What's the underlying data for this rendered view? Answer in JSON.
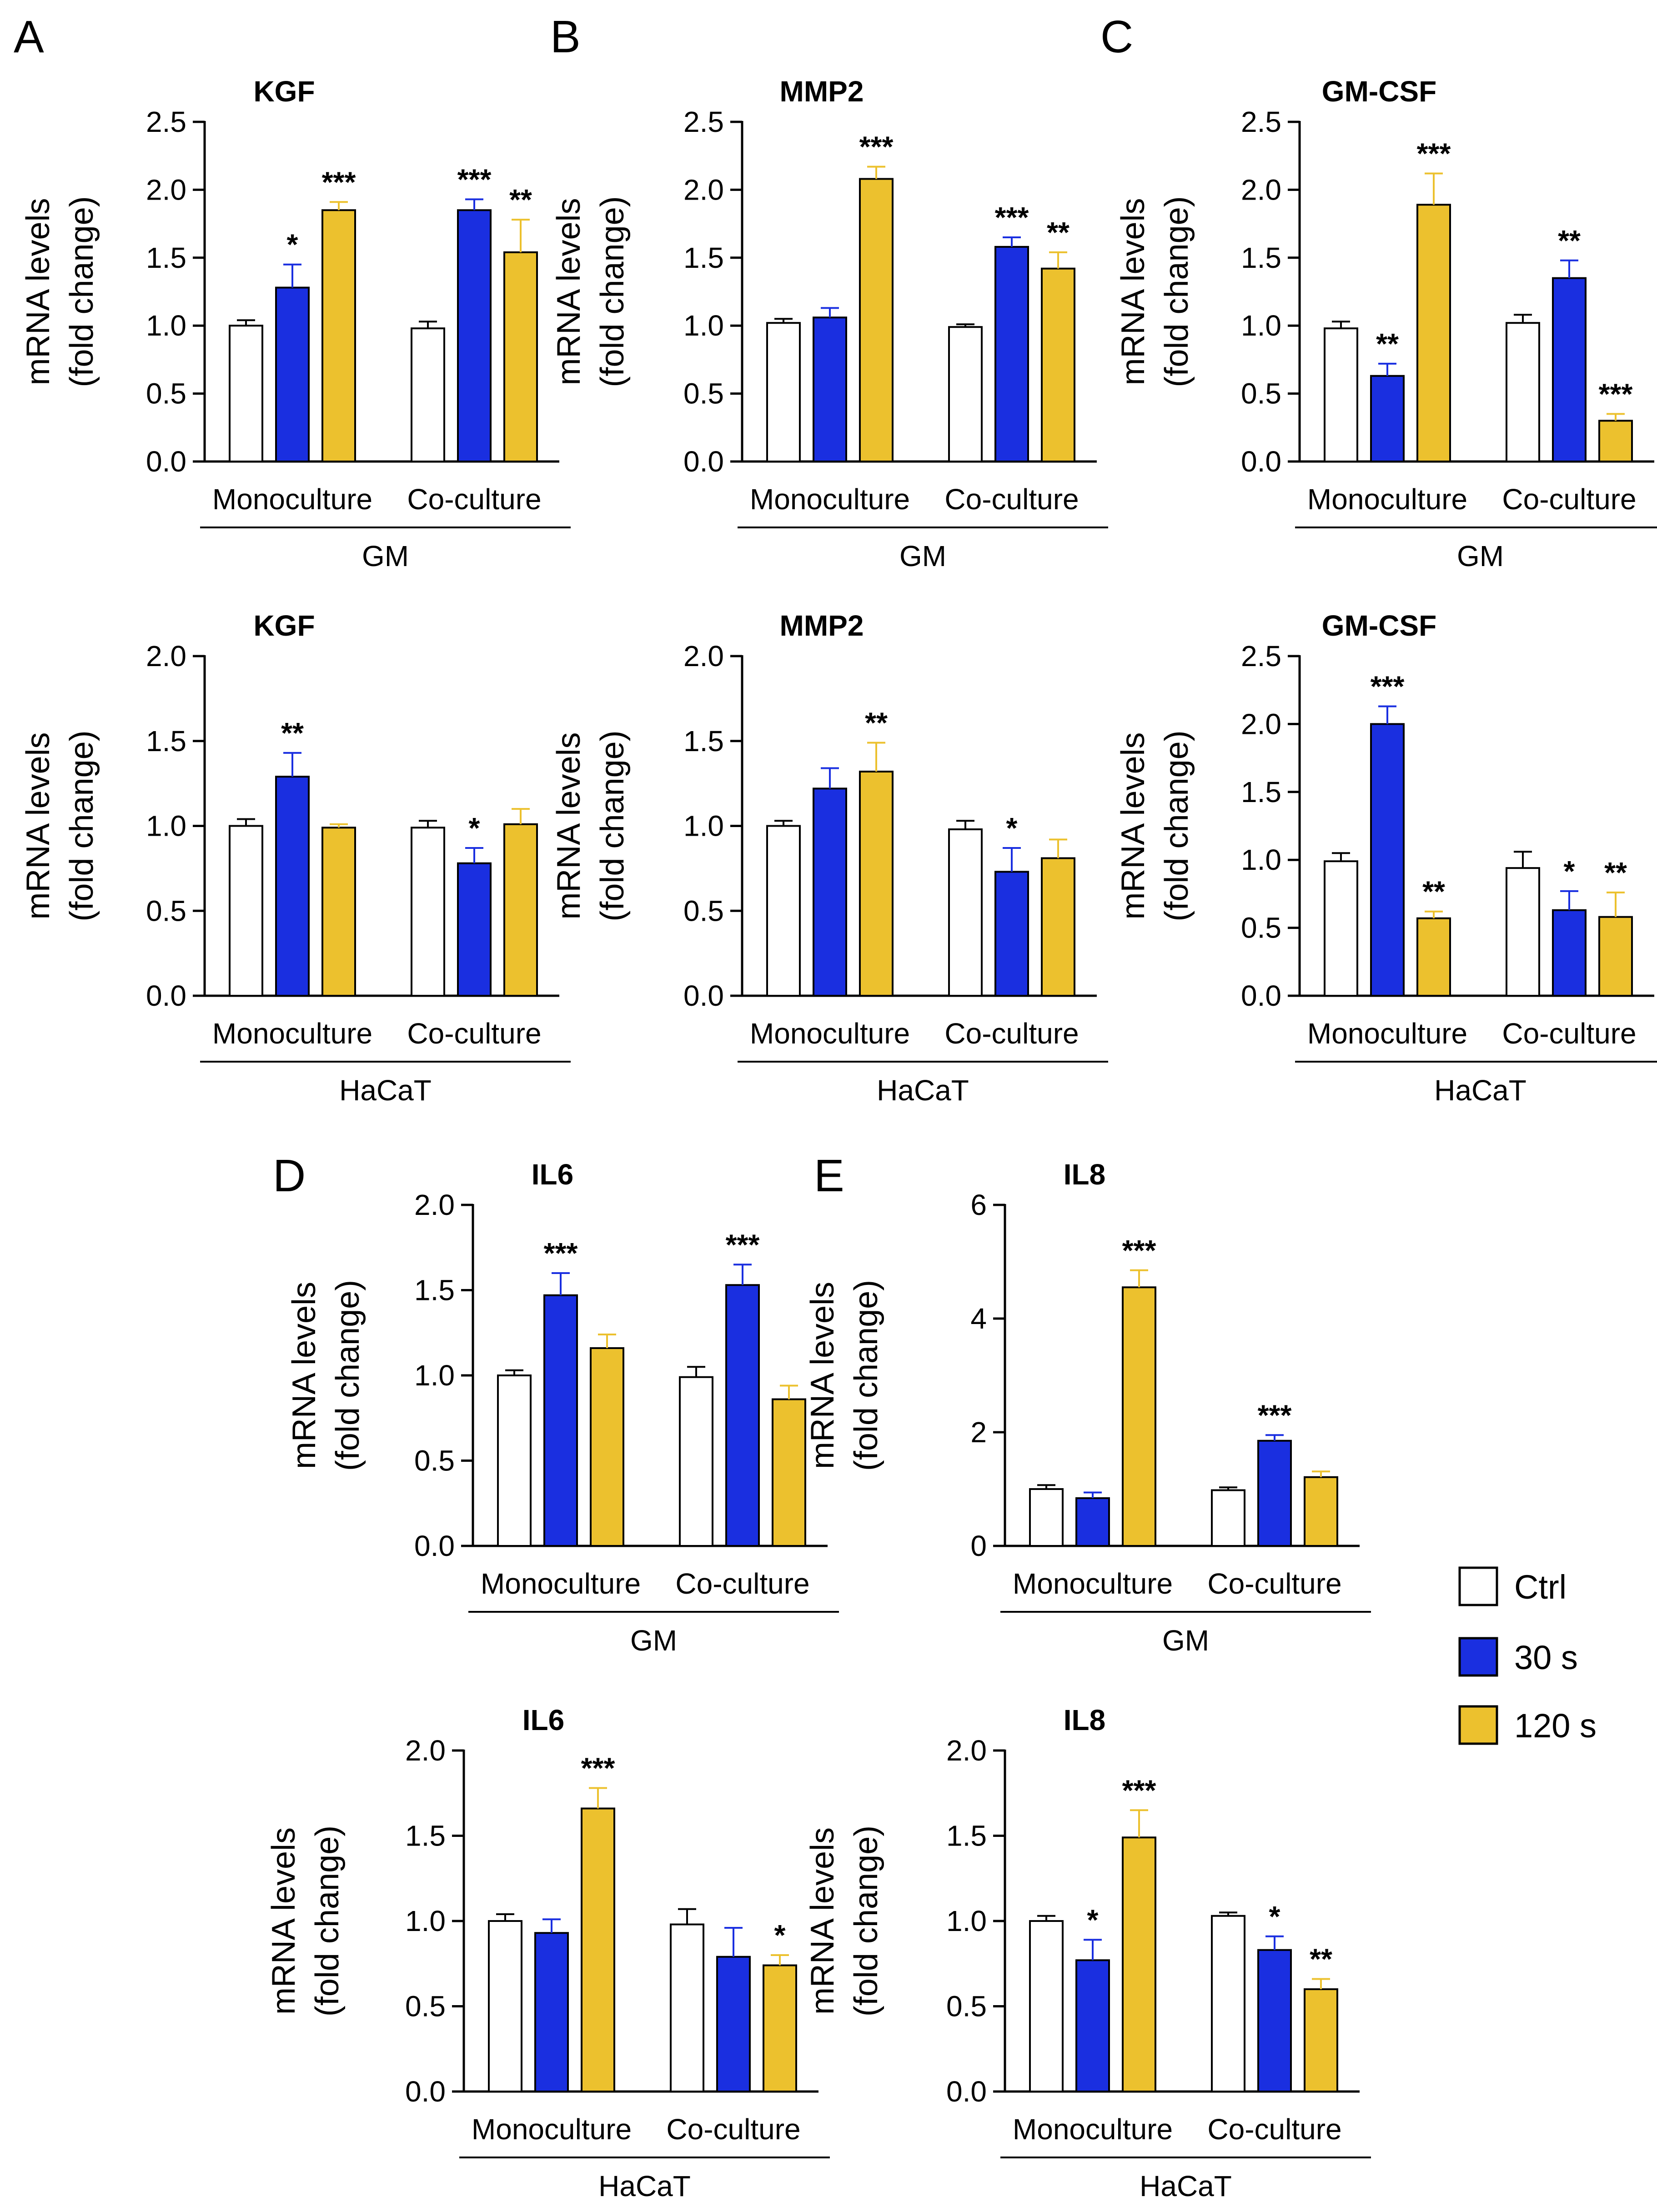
{
  "figure": {
    "colors": {
      "Ctrl": "#ffffff",
      "30 s": "#1a2fe0",
      "120 s": "#ecc12e",
      "axis": "#000000"
    },
    "legend": [
      "Ctrl",
      "30 s",
      "120 s"
    ],
    "y_axis_label": [
      "mRNA levels",
      "(fold change)"
    ],
    "panel_letters": [
      "A",
      "B",
      "C",
      "D",
      "E"
    ]
  },
  "chart_data": [
    {
      "id": "A1",
      "panel": "A",
      "type": "bar",
      "title": "KGF",
      "group_label": "GM",
      "categories": [
        "Monoculture",
        "Co-culture"
      ],
      "ylim": [
        0,
        2.5
      ],
      "yticks": [
        0.0,
        0.5,
        1.0,
        1.5,
        2.0,
        2.5
      ],
      "xlabel": "",
      "ylabel": "mRNA levels (fold change)",
      "series": [
        {
          "name": "Ctrl",
          "values": [
            1.0,
            0.98
          ],
          "errors": [
            0.04,
            0.05
          ],
          "sig": [
            "",
            ""
          ]
        },
        {
          "name": "30 s",
          "values": [
            1.28,
            1.85
          ],
          "errors": [
            0.17,
            0.08
          ],
          "sig": [
            "*",
            "***"
          ]
        },
        {
          "name": "120 s",
          "values": [
            1.85,
            1.54
          ],
          "errors": [
            0.06,
            0.24
          ],
          "sig": [
            "***",
            "**"
          ]
        }
      ]
    },
    {
      "id": "B1",
      "panel": "B",
      "type": "bar",
      "title": "MMP2",
      "group_label": "GM",
      "categories": [
        "Monoculture",
        "Co-culture"
      ],
      "ylim": [
        0,
        2.5
      ],
      "yticks": [
        0.0,
        0.5,
        1.0,
        1.5,
        2.0,
        2.5
      ],
      "xlabel": "",
      "ylabel": "mRNA levels (fold change)",
      "series": [
        {
          "name": "Ctrl",
          "values": [
            1.02,
            0.99
          ],
          "errors": [
            0.03,
            0.02
          ],
          "sig": [
            "",
            ""
          ]
        },
        {
          "name": "30 s",
          "values": [
            1.06,
            1.58
          ],
          "errors": [
            0.07,
            0.07
          ],
          "sig": [
            "",
            "***"
          ]
        },
        {
          "name": "120 s",
          "values": [
            2.08,
            1.42
          ],
          "errors": [
            0.09,
            0.12
          ],
          "sig": [
            "***",
            "**"
          ]
        }
      ]
    },
    {
      "id": "C1",
      "panel": "C",
      "type": "bar",
      "title": "GM-CSF",
      "group_label": "GM",
      "categories": [
        "Monoculture",
        "Co-culture"
      ],
      "ylim": [
        0,
        2.5
      ],
      "yticks": [
        0.0,
        0.5,
        1.0,
        1.5,
        2.0,
        2.5
      ],
      "xlabel": "",
      "ylabel": "mRNA levels (fold change)",
      "series": [
        {
          "name": "Ctrl",
          "values": [
            0.98,
            1.02
          ],
          "errors": [
            0.05,
            0.06
          ],
          "sig": [
            "",
            ""
          ]
        },
        {
          "name": "30 s",
          "values": [
            0.63,
            1.35
          ],
          "errors": [
            0.09,
            0.13
          ],
          "sig": [
            "**",
            "**"
          ]
        },
        {
          "name": "120 s",
          "values": [
            1.89,
            0.3
          ],
          "errors": [
            0.23,
            0.05
          ],
          "sig": [
            "***",
            "***"
          ]
        }
      ]
    },
    {
      "id": "A2",
      "panel": "A",
      "type": "bar",
      "title": "KGF",
      "group_label": "HaCaT",
      "categories": [
        "Monoculture",
        "Co-culture"
      ],
      "ylim": [
        0,
        2.0
      ],
      "yticks": [
        0.0,
        0.5,
        1.0,
        1.5,
        2.0
      ],
      "xlabel": "",
      "ylabel": "mRNA levels (fold change)",
      "series": [
        {
          "name": "Ctrl",
          "values": [
            1.0,
            0.99
          ],
          "errors": [
            0.04,
            0.04
          ],
          "sig": [
            "",
            ""
          ]
        },
        {
          "name": "30 s",
          "values": [
            1.29,
            0.78
          ],
          "errors": [
            0.14,
            0.09
          ],
          "sig": [
            "**",
            "*"
          ]
        },
        {
          "name": "120 s",
          "values": [
            0.99,
            1.01
          ],
          "errors": [
            0.02,
            0.09
          ],
          "sig": [
            "",
            ""
          ]
        }
      ]
    },
    {
      "id": "B2",
      "panel": "B",
      "type": "bar",
      "title": "MMP2",
      "group_label": "HaCaT",
      "categories": [
        "Monoculture",
        "Co-culture"
      ],
      "ylim": [
        0,
        2.0
      ],
      "yticks": [
        0.0,
        0.5,
        1.0,
        1.5,
        2.0
      ],
      "xlabel": "",
      "ylabel": "mRNA levels (fold change)",
      "series": [
        {
          "name": "Ctrl",
          "values": [
            1.0,
            0.98
          ],
          "errors": [
            0.03,
            0.05
          ],
          "sig": [
            "",
            ""
          ]
        },
        {
          "name": "30 s",
          "values": [
            1.22,
            0.73
          ],
          "errors": [
            0.12,
            0.14
          ],
          "sig": [
            "",
            "*"
          ]
        },
        {
          "name": "120 s",
          "values": [
            1.32,
            0.81
          ],
          "errors": [
            0.17,
            0.11
          ],
          "sig": [
            "**",
            ""
          ]
        }
      ]
    },
    {
      "id": "C2",
      "panel": "C",
      "type": "bar",
      "title": "GM-CSF",
      "group_label": "HaCaT",
      "categories": [
        "Monoculture",
        "Co-culture"
      ],
      "ylim": [
        0,
        2.5
      ],
      "yticks": [
        0.0,
        0.5,
        1.0,
        1.5,
        2.0,
        2.5
      ],
      "xlabel": "",
      "ylabel": "mRNA levels (fold change)",
      "series": [
        {
          "name": "Ctrl",
          "values": [
            0.99,
            0.94
          ],
          "errors": [
            0.06,
            0.12
          ],
          "sig": [
            "",
            ""
          ]
        },
        {
          "name": "30 s",
          "values": [
            2.0,
            0.63
          ],
          "errors": [
            0.13,
            0.14
          ],
          "sig": [
            "***",
            "*"
          ]
        },
        {
          "name": "120 s",
          "values": [
            0.57,
            0.58
          ],
          "errors": [
            0.05,
            0.18
          ],
          "sig": [
            "**",
            "**"
          ]
        }
      ]
    },
    {
      "id": "D1",
      "panel": "D",
      "type": "bar",
      "title": "IL6",
      "group_label": "GM",
      "categories": [
        "Monoculture",
        "Co-culture"
      ],
      "ylim": [
        0,
        2.0
      ],
      "yticks": [
        0.0,
        0.5,
        1.0,
        1.5,
        2.0
      ],
      "xlabel": "",
      "ylabel": "mRNA levels (fold change)",
      "series": [
        {
          "name": "Ctrl",
          "values": [
            1.0,
            0.99
          ],
          "errors": [
            0.03,
            0.06
          ],
          "sig": [
            "",
            ""
          ]
        },
        {
          "name": "30 s",
          "values": [
            1.47,
            1.53
          ],
          "errors": [
            0.13,
            0.12
          ],
          "sig": [
            "***",
            "***"
          ]
        },
        {
          "name": "120 s",
          "values": [
            1.16,
            0.86
          ],
          "errors": [
            0.08,
            0.08
          ],
          "sig": [
            "",
            ""
          ]
        }
      ]
    },
    {
      "id": "E1",
      "panel": "E",
      "type": "bar",
      "title": "IL8",
      "group_label": "GM",
      "categories": [
        "Monoculture",
        "Co-culture"
      ],
      "ylim": [
        0,
        6
      ],
      "yticks": [
        0,
        2,
        4,
        6
      ],
      "xlabel": "",
      "ylabel": "mRNA levels (fold change)",
      "series": [
        {
          "name": "Ctrl",
          "values": [
            1.0,
            0.98
          ],
          "errors": [
            0.07,
            0.05
          ],
          "sig": [
            "",
            ""
          ]
        },
        {
          "name": "30 s",
          "values": [
            0.84,
            1.85
          ],
          "errors": [
            0.1,
            0.1
          ],
          "sig": [
            "",
            "***"
          ]
        },
        {
          "name": "120 s",
          "values": [
            4.55,
            1.21
          ],
          "errors": [
            0.3,
            0.1
          ],
          "sig": [
            "***",
            ""
          ]
        }
      ]
    },
    {
      "id": "D2",
      "panel": "D",
      "type": "bar",
      "title": "IL6",
      "group_label": "HaCaT",
      "categories": [
        "Monoculture",
        "Co-culture"
      ],
      "ylim": [
        0,
        2.0
      ],
      "yticks": [
        0.0,
        0.5,
        1.0,
        1.5,
        2.0
      ],
      "xlabel": "",
      "ylabel": "mRNA levels (fold change)",
      "series": [
        {
          "name": "Ctrl",
          "values": [
            1.0,
            0.98
          ],
          "errors": [
            0.04,
            0.09
          ],
          "sig": [
            "",
            ""
          ]
        },
        {
          "name": "30 s",
          "values": [
            0.93,
            0.79
          ],
          "errors": [
            0.08,
            0.17
          ],
          "sig": [
            "",
            ""
          ]
        },
        {
          "name": "120 s",
          "values": [
            1.66,
            0.74
          ],
          "errors": [
            0.12,
            0.06
          ],
          "sig": [
            "***",
            "*"
          ]
        }
      ]
    },
    {
      "id": "E2",
      "panel": "E",
      "type": "bar",
      "title": "IL8",
      "group_label": "HaCaT",
      "categories": [
        "Monoculture",
        "Co-culture"
      ],
      "ylim": [
        0,
        2.0
      ],
      "yticks": [
        0.0,
        0.5,
        1.0,
        1.5,
        2.0
      ],
      "xlabel": "",
      "ylabel": "mRNA levels (fold change)",
      "series": [
        {
          "name": "Ctrl",
          "values": [
            1.0,
            1.03
          ],
          "errors": [
            0.03,
            0.02
          ],
          "sig": [
            "",
            ""
          ]
        },
        {
          "name": "30 s",
          "values": [
            0.77,
            0.83
          ],
          "errors": [
            0.12,
            0.08
          ],
          "sig": [
            "*",
            "*"
          ]
        },
        {
          "name": "120 s",
          "values": [
            1.49,
            0.6
          ],
          "errors": [
            0.16,
            0.06
          ],
          "sig": [
            "***",
            "**"
          ]
        }
      ]
    }
  ]
}
